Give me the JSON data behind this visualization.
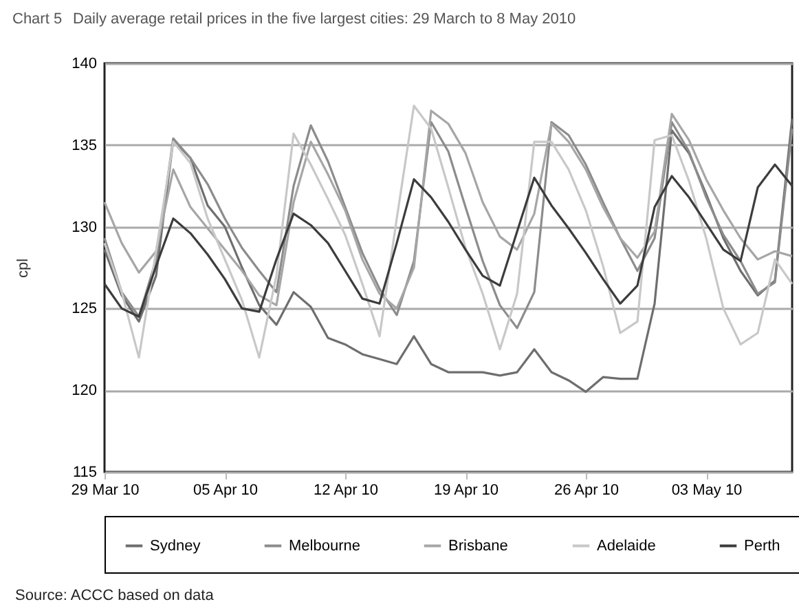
{
  "chart_data": {
    "type": "line",
    "title": "Chart 5",
    "subtitle": "Daily average retail prices in the five largest cities: 29 March to 8 May 2010",
    "ylabel": "cpl",
    "annotations": [
      "Source:  ACCC based on data"
    ],
    "x": [
      "2010-03-29",
      "2010-03-30",
      "2010-03-31",
      "2010-04-01",
      "2010-04-02",
      "2010-04-03",
      "2010-04-04",
      "2010-04-05",
      "2010-04-06",
      "2010-04-07",
      "2010-04-08",
      "2010-04-09",
      "2010-04-10",
      "2010-04-11",
      "2010-04-12",
      "2010-04-13",
      "2010-04-14",
      "2010-04-15",
      "2010-04-16",
      "2010-04-17",
      "2010-04-18",
      "2010-04-19",
      "2010-04-20",
      "2010-04-21",
      "2010-04-22",
      "2010-04-23",
      "2010-04-24",
      "2010-04-25",
      "2010-04-26",
      "2010-04-27",
      "2010-04-28",
      "2010-04-29",
      "2010-04-30",
      "2010-05-01",
      "2010-05-02",
      "2010-05-03",
      "2010-05-04",
      "2010-05-05",
      "2010-05-06",
      "2010-05-07",
      "2010-05-08"
    ],
    "series": [
      {
        "name": "Sydney",
        "color": "#6e6e6e",
        "values": [
          128.6,
          125.8,
          124.2,
          127.0,
          135.3,
          134.2,
          131.3,
          130.0,
          127.5,
          125.2,
          124.0,
          126.0,
          125.1,
          123.2,
          122.8,
          122.2,
          121.9,
          121.6,
          123.3,
          121.6,
          121.1,
          121.1,
          121.1,
          120.9,
          121.1,
          122.5,
          121.1,
          120.6,
          119.9,
          120.8,
          120.7,
          120.7,
          125.3,
          135.9,
          134.5,
          132.0,
          129.3,
          127.3,
          125.8,
          126.7,
          136.6
        ]
      },
      {
        "name": "Melbourne",
        "color": "#8c8c8c",
        "values": [
          129.3,
          126.0,
          124.5,
          128.0,
          135.4,
          134.2,
          132.6,
          130.5,
          128.7,
          127.3,
          126.0,
          132.5,
          136.2,
          134.0,
          131.2,
          128.4,
          126.2,
          124.6,
          127.9,
          136.4,
          134.6,
          131.2,
          127.9,
          125.2,
          123.8,
          126.0,
          136.4,
          135.6,
          133.8,
          131.5,
          129.3,
          127.3,
          129.3,
          136.4,
          134.6,
          131.8,
          129.5,
          127.9,
          125.9,
          126.6,
          136.0
        ]
      },
      {
        "name": "Brisbane",
        "color": "#a6a6a6",
        "values": [
          131.5,
          129.0,
          127.2,
          128.5,
          133.5,
          131.2,
          129.9,
          128.6,
          127.3,
          125.8,
          125.2,
          131.5,
          135.2,
          133.2,
          131.0,
          128.0,
          125.9,
          125.0,
          127.5,
          137.1,
          136.3,
          134.5,
          131.5,
          129.4,
          128.6,
          130.8,
          136.3,
          135.2,
          133.5,
          131.2,
          129.3,
          128.1,
          129.7,
          136.9,
          135.3,
          132.9,
          131.0,
          129.3,
          128.0,
          128.5,
          128.2
        ]
      },
      {
        "name": "Adelaide",
        "color": "#c8c8c8",
        "values": [
          129.0,
          126.0,
          122.0,
          128.5,
          135.2,
          133.9,
          130.5,
          128.0,
          125.5,
          122.0,
          127.0,
          135.7,
          133.8,
          131.7,
          129.5,
          126.5,
          123.3,
          130.5,
          137.4,
          136.0,
          132.4,
          128.7,
          125.9,
          122.5,
          125.9,
          135.2,
          135.2,
          133.5,
          131.0,
          127.6,
          123.5,
          124.2,
          135.3,
          135.6,
          132.8,
          129.3,
          125.0,
          122.8,
          123.5,
          128.0,
          126.5
        ]
      },
      {
        "name": "Perth",
        "color": "#3c3c3c",
        "values": [
          126.5,
          125.0,
          124.5,
          127.6,
          130.5,
          129.6,
          128.3,
          126.8,
          125.0,
          124.8,
          128.0,
          130.8,
          130.1,
          129.0,
          127.3,
          125.6,
          125.3,
          129.0,
          132.9,
          131.8,
          130.3,
          128.6,
          127.0,
          126.4,
          129.7,
          133.0,
          131.3,
          129.9,
          128.4,
          126.8,
          125.3,
          126.4,
          131.2,
          133.1,
          131.8,
          130.2,
          128.6,
          127.9,
          132.4,
          133.8,
          132.5
        ]
      }
    ],
    "xlim": [
      "2010-03-29",
      "2010-05-08"
    ],
    "xticks": [
      {
        "value": "2010-03-29",
        "label": "29 Mar 10"
      },
      {
        "value": "2010-04-05",
        "label": "05 Apr 10"
      },
      {
        "value": "2010-04-12",
        "label": "12 Apr 10"
      },
      {
        "value": "2010-04-19",
        "label": "19 Apr 10"
      },
      {
        "value": "2010-04-26",
        "label": "26 Apr 10"
      },
      {
        "value": "2010-05-03",
        "label": "03 May 10"
      }
    ],
    "ylim": [
      115,
      140
    ],
    "yticks": [
      115,
      120,
      125,
      130,
      135,
      140
    ],
    "grid": "y",
    "legend": "bottom",
    "marker": "none",
    "line_style": "solid"
  }
}
